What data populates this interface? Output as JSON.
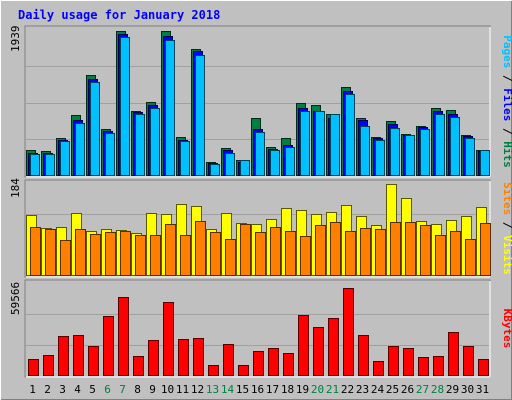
{
  "title": "Daily usage for January 2018",
  "colors": {
    "background": "#c0c0c0",
    "frame_dark": "#808080",
    "frame_light": "#ffffff",
    "title_text": "#0000ff",
    "hits": "#008040",
    "files": "#0000ff",
    "pages": "#00c0ff",
    "visits": "#ffff00",
    "sites": "#ff8000",
    "kbytes": "#ff0000",
    "weekend_day": "#008040",
    "weekday_day": "#000000",
    "separator": "#000000"
  },
  "chart_data": [
    {
      "type": "bar",
      "panel": "top",
      "categories": [
        "1",
        "2",
        "3",
        "4",
        "5",
        "6",
        "7",
        "8",
        "9",
        "10",
        "11",
        "12",
        "13",
        "14",
        "15",
        "16",
        "17",
        "18",
        "19",
        "20",
        "21",
        "22",
        "23",
        "24",
        "25",
        "26",
        "27",
        "28",
        "29",
        "30",
        "31"
      ],
      "weekend_days": [
        6,
        7,
        13,
        14,
        20,
        21,
        27,
        28
      ],
      "y_tick_label": "1939",
      "ylim": [
        0,
        1939
      ],
      "grid": true,
      "legend": [
        "Pages",
        "/",
        "Files",
        "/",
        "Hits"
      ],
      "series": [
        {
          "name": "Hits",
          "values": [
            330,
            320,
            500,
            800,
            1340,
            620,
            1920,
            860,
            980,
            1920,
            510,
            1690,
            170,
            360,
            200,
            760,
            370,
            500,
            960,
            935,
            815,
            1180,
            760,
            510,
            720,
            550,
            650,
            900,
            870,
            540,
            340
          ]
        },
        {
          "name": "Files",
          "values": [
            300,
            290,
            470,
            740,
            1280,
            590,
            1880,
            840,
            930,
            1860,
            470,
            1660,
            160,
            330,
            180,
            620,
            350,
            400,
            900,
            860,
            765,
            1120,
            740,
            490,
            680,
            530,
            640,
            850,
            810,
            520,
            320
          ]
        },
        {
          "name": "Pages",
          "values": [
            280,
            280,
            450,
            700,
            1250,
            560,
            1840,
            810,
            890,
            1810,
            450,
            1610,
            150,
            290,
            200,
            580,
            340,
            380,
            850,
            850,
            820,
            1080,
            660,
            470,
            630,
            540,
            620,
            820,
            780,
            500,
            330
          ]
        }
      ]
    },
    {
      "type": "bar",
      "panel": "middle",
      "categories": [
        "1",
        "2",
        "3",
        "4",
        "5",
        "6",
        "7",
        "8",
        "9",
        "10",
        "11",
        "12",
        "13",
        "14",
        "15",
        "16",
        "17",
        "18",
        "19",
        "20",
        "21",
        "22",
        "23",
        "24",
        "25",
        "26",
        "27",
        "28",
        "29",
        "30",
        "31"
      ],
      "y_tick_label": "184",
      "ylim": [
        0,
        184
      ],
      "grid": true,
      "legend": [
        "Sites",
        "/",
        "Visits"
      ],
      "series": [
        {
          "name": "Visits",
          "values": [
            121,
            96,
            97,
            125,
            88,
            93,
            91,
            85,
            126,
            123,
            143,
            139,
            93,
            125,
            106,
            104,
            113,
            135,
            132,
            123,
            127,
            142,
            120,
            101,
            184,
            155,
            109,
            104,
            111,
            120,
            137
          ]
        },
        {
          "name": "Sites",
          "values": [
            97,
            92,
            71,
            94,
            83,
            87,
            89,
            81,
            80,
            104,
            80,
            109,
            86,
            72,
            103,
            87,
            98,
            88,
            78,
            101,
            107,
            88,
            95,
            93,
            107,
            108,
            102,
            81,
            89,
            73,
            106
          ]
        }
      ]
    },
    {
      "type": "bar",
      "panel": "bottom",
      "categories": [
        "1",
        "2",
        "3",
        "4",
        "5",
        "6",
        "7",
        "8",
        "9",
        "10",
        "11",
        "12",
        "13",
        "14",
        "15",
        "16",
        "17",
        "18",
        "19",
        "20",
        "21",
        "22",
        "23",
        "24",
        "25",
        "26",
        "27",
        "28",
        "29",
        "30",
        "31"
      ],
      "y_tick_label": "59566",
      "ylim": [
        0,
        59566
      ],
      "grid": true,
      "legend": [
        "KBytes"
      ],
      "series": [
        {
          "name": "KBytes",
          "values": [
            10200,
            13300,
            25600,
            26300,
            19200,
            38300,
            50900,
            12600,
            23000,
            48000,
            23300,
            24400,
            6300,
            20000,
            6700,
            15700,
            18000,
            14600,
            39000,
            31200,
            37400,
            56800,
            26300,
            9200,
            19200,
            17500,
            11700,
            12400,
            28400,
            19300,
            10500
          ]
        }
      ]
    }
  ]
}
